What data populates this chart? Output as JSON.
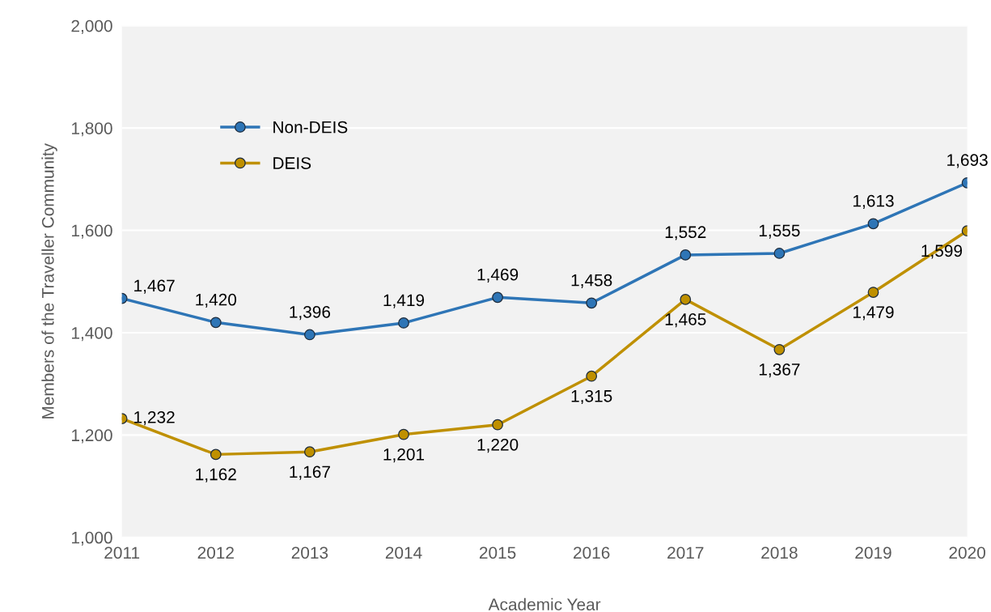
{
  "chart_data": {
    "type": "line",
    "xlabel": "Academic Year",
    "ylabel": "Members of the Traveller Community",
    "x": [
      2011,
      2012,
      2013,
      2014,
      2015,
      2016,
      2017,
      2018,
      2019,
      2020
    ],
    "series": [
      {
        "name": "Non-DEIS",
        "color": "#2e75b6",
        "values": [
          1467,
          1420,
          1396,
          1419,
          1469,
          1458,
          1552,
          1555,
          1613,
          1693
        ],
        "value_labels": [
          "1,467",
          "1,420",
          "1,396",
          "1,419",
          "1,469",
          "1,458",
          "1,552",
          "1,555",
          "1,613",
          "1,693"
        ]
      },
      {
        "name": "DEIS",
        "color": "#bf9000",
        "values": [
          1232,
          1162,
          1167,
          1201,
          1220,
          1315,
          1465,
          1367,
          1479,
          1599
        ],
        "value_labels": [
          "1,232",
          "1,162",
          "1,167",
          "1,201",
          "1,220",
          "1,315",
          "1,465",
          "1,367",
          "1,479",
          "1,599"
        ]
      }
    ],
    "xlim": [
      2011,
      2020
    ],
    "xticks": [
      2011,
      2012,
      2013,
      2014,
      2015,
      2016,
      2017,
      2018,
      2019,
      2020
    ],
    "ylim": [
      1000,
      2000
    ],
    "yticks": [
      {
        "value": 1000,
        "label": "1,000"
      },
      {
        "value": 1200,
        "label": "1,200"
      },
      {
        "value": 1400,
        "label": "1,400"
      },
      {
        "value": 1600,
        "label": "1,600"
      },
      {
        "value": 1800,
        "label": "1,800"
      },
      {
        "value": 2000,
        "label": "2,000"
      }
    ],
    "grid": "y",
    "legend": "top left",
    "marker": "circle",
    "line_style": "solid"
  }
}
